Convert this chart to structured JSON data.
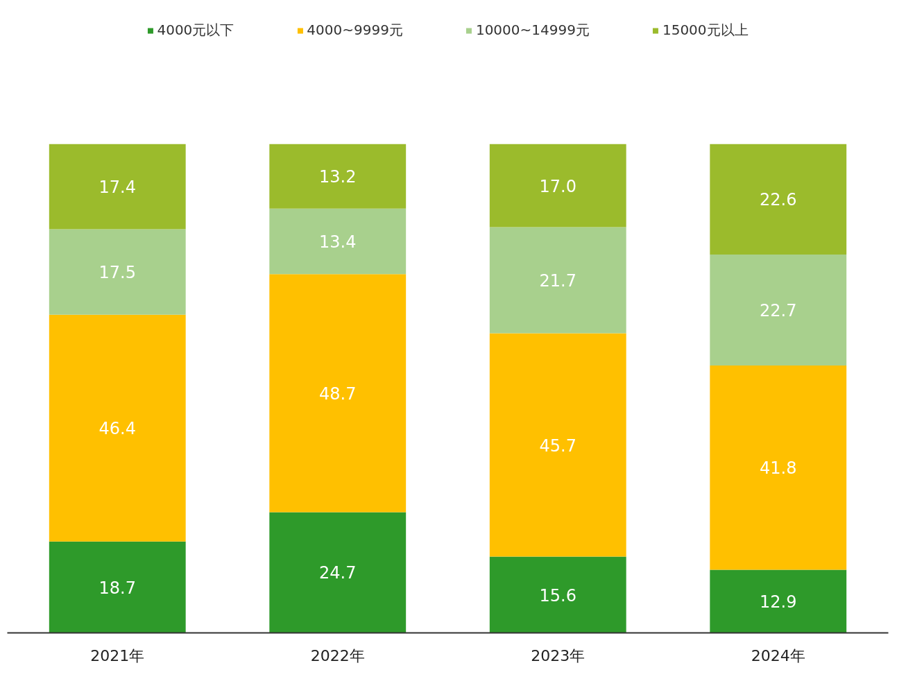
{
  "chart_data": {
    "type": "bar",
    "stacked": true,
    "legend": "top",
    "grid": false,
    "categories": [
      "2021年",
      "2022年",
      "2023年",
      "2024年"
    ],
    "series": [
      {
        "name": "4000元以下",
        "color": "#2e9a2a",
        "values": [
          18.7,
          24.7,
          15.6,
          12.9
        ],
        "value_labels": [
          "18.7",
          "24.7",
          "15.6",
          "12.9"
        ]
      },
      {
        "name": "4000~9999元",
        "color": "#ffc000",
        "values": [
          46.4,
          48.7,
          45.7,
          41.8
        ],
        "value_labels": [
          "46.4",
          "48.7",
          "45.7",
          "41.8"
        ]
      },
      {
        "name": "10000~14999元",
        "color": "#a8d08d",
        "values": [
          17.5,
          13.4,
          21.7,
          22.7
        ],
        "value_labels": [
          "17.5",
          "13.4",
          "21.7",
          "22.7"
        ]
      },
      {
        "name": "15000元以上",
        "color": "#9bbb2c",
        "values": [
          17.4,
          13.2,
          17.0,
          22.6
        ],
        "value_labels": [
          "17.4",
          "13.2",
          "17.0",
          "22.6"
        ]
      }
    ]
  }
}
